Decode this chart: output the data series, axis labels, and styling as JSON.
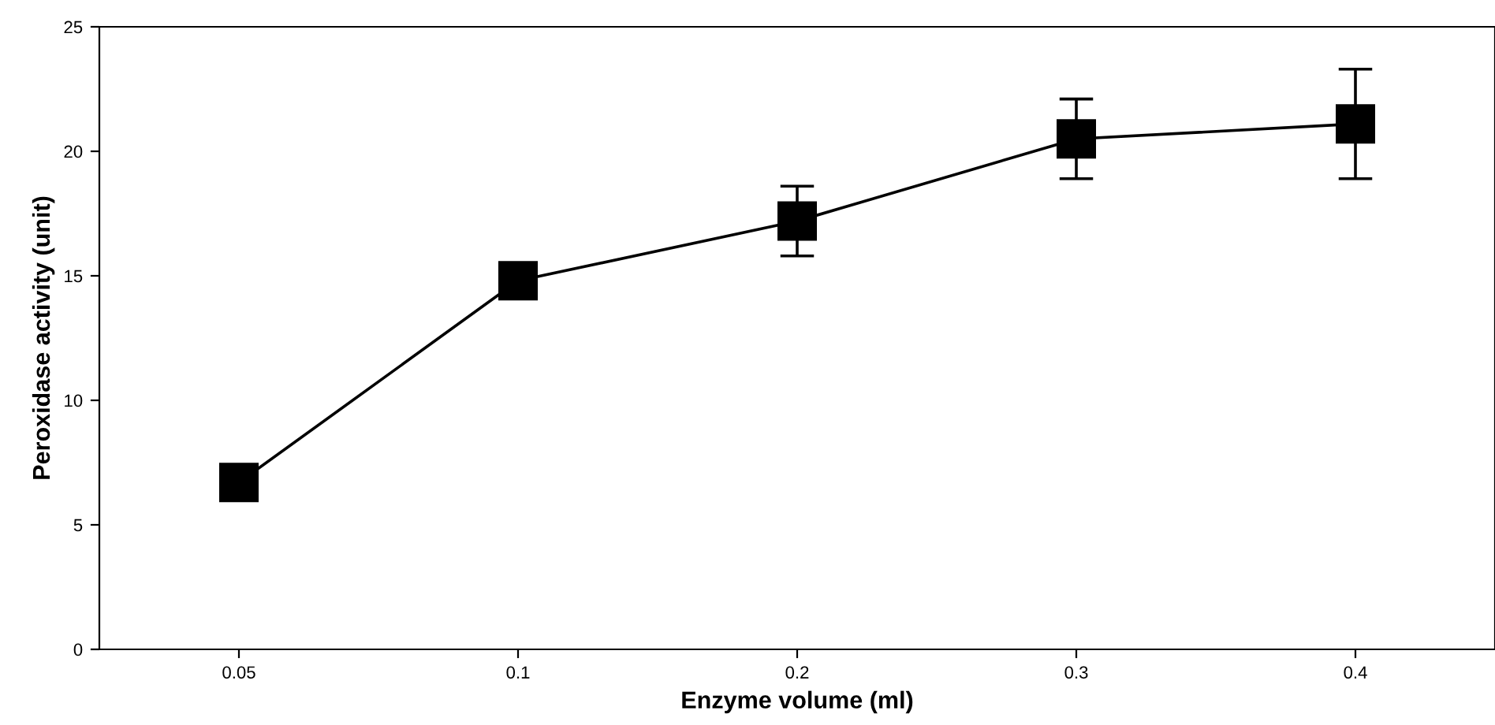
{
  "chart_data": {
    "type": "line",
    "xlabel": "Enzyme volume (ml)",
    "ylabel": "Peroxidase activity (unit)",
    "categories": [
      "0.05",
      "0.1",
      "0.2",
      "0.3",
      "0.4"
    ],
    "series": [
      {
        "color": "#000000",
        "values": [
          6.7,
          14.8,
          17.2,
          20.5,
          21.1
        ],
        "errors": [
          null,
          null,
          [
            15.8,
            18.6
          ],
          [
            18.9,
            22.1
          ],
          [
            18.9,
            23.3
          ]
        ]
      }
    ],
    "ylim": [
      0,
      25
    ],
    "yticks": [
      0,
      5,
      10,
      15,
      20,
      25
    ],
    "grid": false,
    "legend": false,
    "marker": "square",
    "line_style": "solid"
  }
}
